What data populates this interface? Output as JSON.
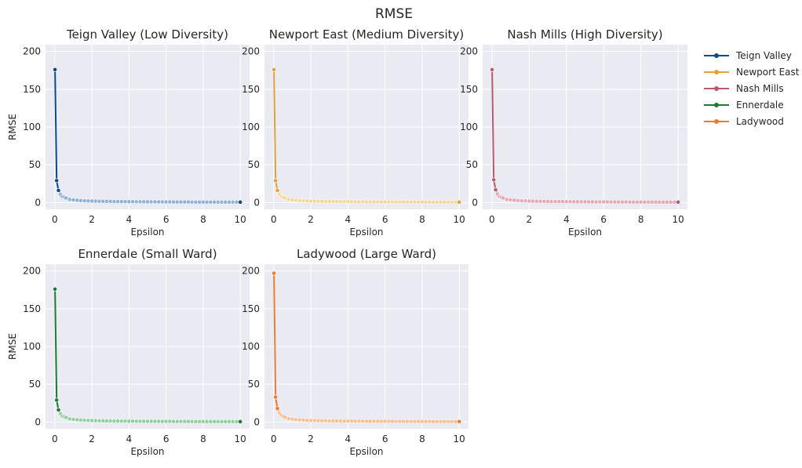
{
  "title": "RMSE",
  "colors": {
    "panel_bg": "#eaeaf2",
    "grid": "#ffffff"
  },
  "legend": {
    "placement": "outside-right-top",
    "entries": [
      {
        "label": "Teign Valley",
        "color": "#0b4a8f"
      },
      {
        "label": "Newport East",
        "color": "#e3a234"
      },
      {
        "label": "Nash Mills",
        "color": "#b85b6e"
      },
      {
        "label": "Ennerdale",
        "color": "#1b7a36"
      },
      {
        "label": "Ladywood",
        "color": "#ef7b2f"
      }
    ]
  },
  "chart_data": [
    {
      "type": "line",
      "title": "Teign Valley (Low Diversity)",
      "xlabel": "Epsilon",
      "ylabel": "RMSE",
      "xlim": [
        -0.5,
        10.5
      ],
      "ylim": [
        -9,
        209
      ],
      "xticks": [
        0,
        2,
        4,
        6,
        8,
        10
      ],
      "yticks": [
        0,
        50,
        100,
        150,
        200
      ],
      "grid": true,
      "series": [
        {
          "color": "#0b4a8f",
          "light_color": "#8fb2d9",
          "x": [
            0.01,
            0.1,
            0.2,
            0.3,
            0.4,
            0.5,
            0.6,
            0.8,
            1.0,
            1.2,
            1.4,
            1.6,
            1.8,
            2.0,
            2.2,
            2.4,
            2.6,
            2.8,
            3.0,
            3.2,
            3.4,
            3.6,
            3.8,
            4.0,
            4.2,
            4.4,
            4.6,
            4.8,
            5.0,
            5.2,
            5.4,
            5.6,
            5.8,
            6.0,
            6.2,
            6.4,
            6.6,
            6.8,
            7.0,
            7.2,
            7.4,
            7.6,
            7.8,
            8.0,
            8.2,
            8.4,
            8.6,
            8.8,
            9.0,
            9.2,
            9.4,
            9.6,
            9.8,
            10.0
          ],
          "y": [
            176,
            29,
            16,
            11,
            8,
            7,
            6,
            4,
            3.5,
            3,
            2.6,
            2.3,
            2.1,
            1.9,
            1.8,
            1.7,
            1.6,
            1.5,
            1.4,
            1.3,
            1.3,
            1.2,
            1.2,
            1.1,
            1.1,
            1,
            1,
            1,
            0.9,
            0.9,
            0.9,
            0.8,
            0.8,
            0.8,
            0.8,
            0.7,
            0.7,
            0.7,
            0.7,
            0.7,
            0.6,
            0.6,
            0.6,
            0.6,
            0.6,
            0.6,
            0.5,
            0.5,
            0.5,
            0.5,
            0.5,
            0.5,
            0.5,
            0.5
          ]
        }
      ]
    },
    {
      "type": "line",
      "title": "Newport East (Medium Diversity)",
      "xlabel": "Epsilon",
      "ylabel": "",
      "xlim": [
        -0.5,
        10.5
      ],
      "ylim": [
        -9,
        209
      ],
      "xticks": [
        0,
        2,
        4,
        6,
        8,
        10
      ],
      "yticks": [
        0,
        50,
        100,
        150,
        200
      ],
      "grid": true,
      "series": [
        {
          "color": "#e3a234",
          "light_color": "#f6d79a",
          "x": [
            0.01,
            0.1,
            0.2,
            0.3,
            0.4,
            0.5,
            0.6,
            0.8,
            1.0,
            1.2,
            1.4,
            1.6,
            1.8,
            2.0,
            2.2,
            2.4,
            2.6,
            2.8,
            3.0,
            3.2,
            3.4,
            3.6,
            3.8,
            4.0,
            4.2,
            4.4,
            4.6,
            4.8,
            5.0,
            5.2,
            5.4,
            5.6,
            5.8,
            6.0,
            6.2,
            6.4,
            6.6,
            6.8,
            7.0,
            7.2,
            7.4,
            7.6,
            7.8,
            8.0,
            8.2,
            8.4,
            8.6,
            8.8,
            9.0,
            9.2,
            9.4,
            9.6,
            9.8,
            10.0
          ],
          "y": [
            176,
            29,
            16,
            11,
            8,
            7,
            6,
            4,
            3.5,
            3,
            2.6,
            2.3,
            2.1,
            1.9,
            1.8,
            1.7,
            1.6,
            1.5,
            1.4,
            1.3,
            1.3,
            1.2,
            1.2,
            1.1,
            1.1,
            1,
            1,
            1,
            0.9,
            0.9,
            0.9,
            0.8,
            0.8,
            0.8,
            0.8,
            0.7,
            0.7,
            0.7,
            0.7,
            0.7,
            0.6,
            0.6,
            0.6,
            0.6,
            0.6,
            0.6,
            0.5,
            0.5,
            0.5,
            0.5,
            0.5,
            0.5,
            0.5,
            0.5
          ]
        }
      ]
    },
    {
      "type": "line",
      "title": "Nash Mills (High Diversity)",
      "xlabel": "Epsilon",
      "ylabel": "",
      "xlim": [
        -0.5,
        10.5
      ],
      "ylim": [
        -9,
        209
      ],
      "xticks": [
        0,
        2,
        4,
        6,
        8,
        10
      ],
      "yticks": [
        0,
        50,
        100,
        150,
        200
      ],
      "grid": true,
      "series": [
        {
          "color": "#b85b6e",
          "light_color": "#e6a9b6",
          "x": [
            0.01,
            0.1,
            0.2,
            0.3,
            0.4,
            0.5,
            0.6,
            0.8,
            1.0,
            1.2,
            1.4,
            1.6,
            1.8,
            2.0,
            2.2,
            2.4,
            2.6,
            2.8,
            3.0,
            3.2,
            3.4,
            3.6,
            3.8,
            4.0,
            4.2,
            4.4,
            4.6,
            4.8,
            5.0,
            5.2,
            5.4,
            5.6,
            5.8,
            6.0,
            6.2,
            6.4,
            6.6,
            6.8,
            7.0,
            7.2,
            7.4,
            7.6,
            7.8,
            8.0,
            8.2,
            8.4,
            8.6,
            8.8,
            9.0,
            9.2,
            9.4,
            9.6,
            9.8,
            10.0
          ],
          "y": [
            176,
            30,
            17,
            11,
            8,
            7,
            6,
            4,
            3.5,
            3,
            2.6,
            2.3,
            2.1,
            1.9,
            1.8,
            1.7,
            1.6,
            1.5,
            1.4,
            1.3,
            1.3,
            1.2,
            1.2,
            1.1,
            1.1,
            1,
            1,
            1,
            0.9,
            0.9,
            0.9,
            0.8,
            0.8,
            0.8,
            0.8,
            0.7,
            0.7,
            0.7,
            0.7,
            0.7,
            0.6,
            0.6,
            0.6,
            0.6,
            0.6,
            0.6,
            0.5,
            0.5,
            0.5,
            0.5,
            0.5,
            0.5,
            0.5,
            0.5
          ]
        }
      ]
    },
    {
      "type": "line",
      "title": "Ennerdale (Small Ward)",
      "xlabel": "Epsilon",
      "ylabel": "RMSE",
      "xlim": [
        -0.5,
        10.5
      ],
      "ylim": [
        -9,
        209
      ],
      "xticks": [
        0,
        2,
        4,
        6,
        8,
        10
      ],
      "yticks": [
        0,
        50,
        100,
        150,
        200
      ],
      "grid": true,
      "series": [
        {
          "color": "#1b7a36",
          "light_color": "#93cf9f",
          "x": [
            0.01,
            0.1,
            0.2,
            0.3,
            0.4,
            0.5,
            0.6,
            0.8,
            1.0,
            1.2,
            1.4,
            1.6,
            1.8,
            2.0,
            2.2,
            2.4,
            2.6,
            2.8,
            3.0,
            3.2,
            3.4,
            3.6,
            3.8,
            4.0,
            4.2,
            4.4,
            4.6,
            4.8,
            5.0,
            5.2,
            5.4,
            5.6,
            5.8,
            6.0,
            6.2,
            6.4,
            6.6,
            6.8,
            7.0,
            7.2,
            7.4,
            7.6,
            7.8,
            8.0,
            8.2,
            8.4,
            8.6,
            8.8,
            9.0,
            9.2,
            9.4,
            9.6,
            9.8,
            10.0
          ],
          "y": [
            176,
            29,
            16,
            11,
            8,
            7,
            6,
            4,
            3.5,
            3,
            2.6,
            2.3,
            2.1,
            1.9,
            1.8,
            1.7,
            1.6,
            1.5,
            1.4,
            1.3,
            1.3,
            1.2,
            1.2,
            1.1,
            1.1,
            1,
            1,
            1,
            0.9,
            0.9,
            0.9,
            0.8,
            0.8,
            0.8,
            0.8,
            0.7,
            0.7,
            0.7,
            0.7,
            0.7,
            0.6,
            0.6,
            0.6,
            0.6,
            0.6,
            0.6,
            0.5,
            0.5,
            0.5,
            0.5,
            0.5,
            0.5,
            0.5,
            0.5
          ]
        }
      ]
    },
    {
      "type": "line",
      "title": "Ladywood (Large Ward)",
      "xlabel": "Epsilon",
      "ylabel": "",
      "xlim": [
        -0.5,
        10.5
      ],
      "ylim": [
        -9,
        209
      ],
      "xticks": [
        0,
        2,
        4,
        6,
        8,
        10
      ],
      "yticks": [
        0,
        50,
        100,
        150,
        200
      ],
      "grid": true,
      "series": [
        {
          "color": "#ef7b2f",
          "light_color": "#f9bf95",
          "x": [
            0.01,
            0.1,
            0.2,
            0.3,
            0.4,
            0.5,
            0.6,
            0.8,
            1.0,
            1.2,
            1.4,
            1.6,
            1.8,
            2.0,
            2.2,
            2.4,
            2.6,
            2.8,
            3.0,
            3.2,
            3.4,
            3.6,
            3.8,
            4.0,
            4.2,
            4.4,
            4.6,
            4.8,
            5.0,
            5.2,
            5.4,
            5.6,
            5.8,
            6.0,
            6.2,
            6.4,
            6.6,
            6.8,
            7.0,
            7.2,
            7.4,
            7.6,
            7.8,
            8.0,
            8.2,
            8.4,
            8.6,
            8.8,
            9.0,
            9.2,
            9.4,
            9.6,
            9.8,
            10.0
          ],
          "y": [
            197,
            33,
            18,
            12,
            9,
            7.5,
            6.5,
            4.5,
            3.8,
            3.2,
            2.8,
            2.5,
            2.2,
            2,
            1.9,
            1.8,
            1.7,
            1.6,
            1.5,
            1.4,
            1.4,
            1.3,
            1.3,
            1.2,
            1.2,
            1.1,
            1.1,
            1.1,
            1,
            1,
            1,
            0.9,
            0.9,
            0.9,
            0.9,
            0.8,
            0.8,
            0.8,
            0.8,
            0.8,
            0.7,
            0.7,
            0.7,
            0.7,
            0.7,
            0.7,
            0.6,
            0.6,
            0.6,
            0.6,
            0.6,
            0.6,
            0.6,
            0.6
          ]
        }
      ]
    }
  ]
}
